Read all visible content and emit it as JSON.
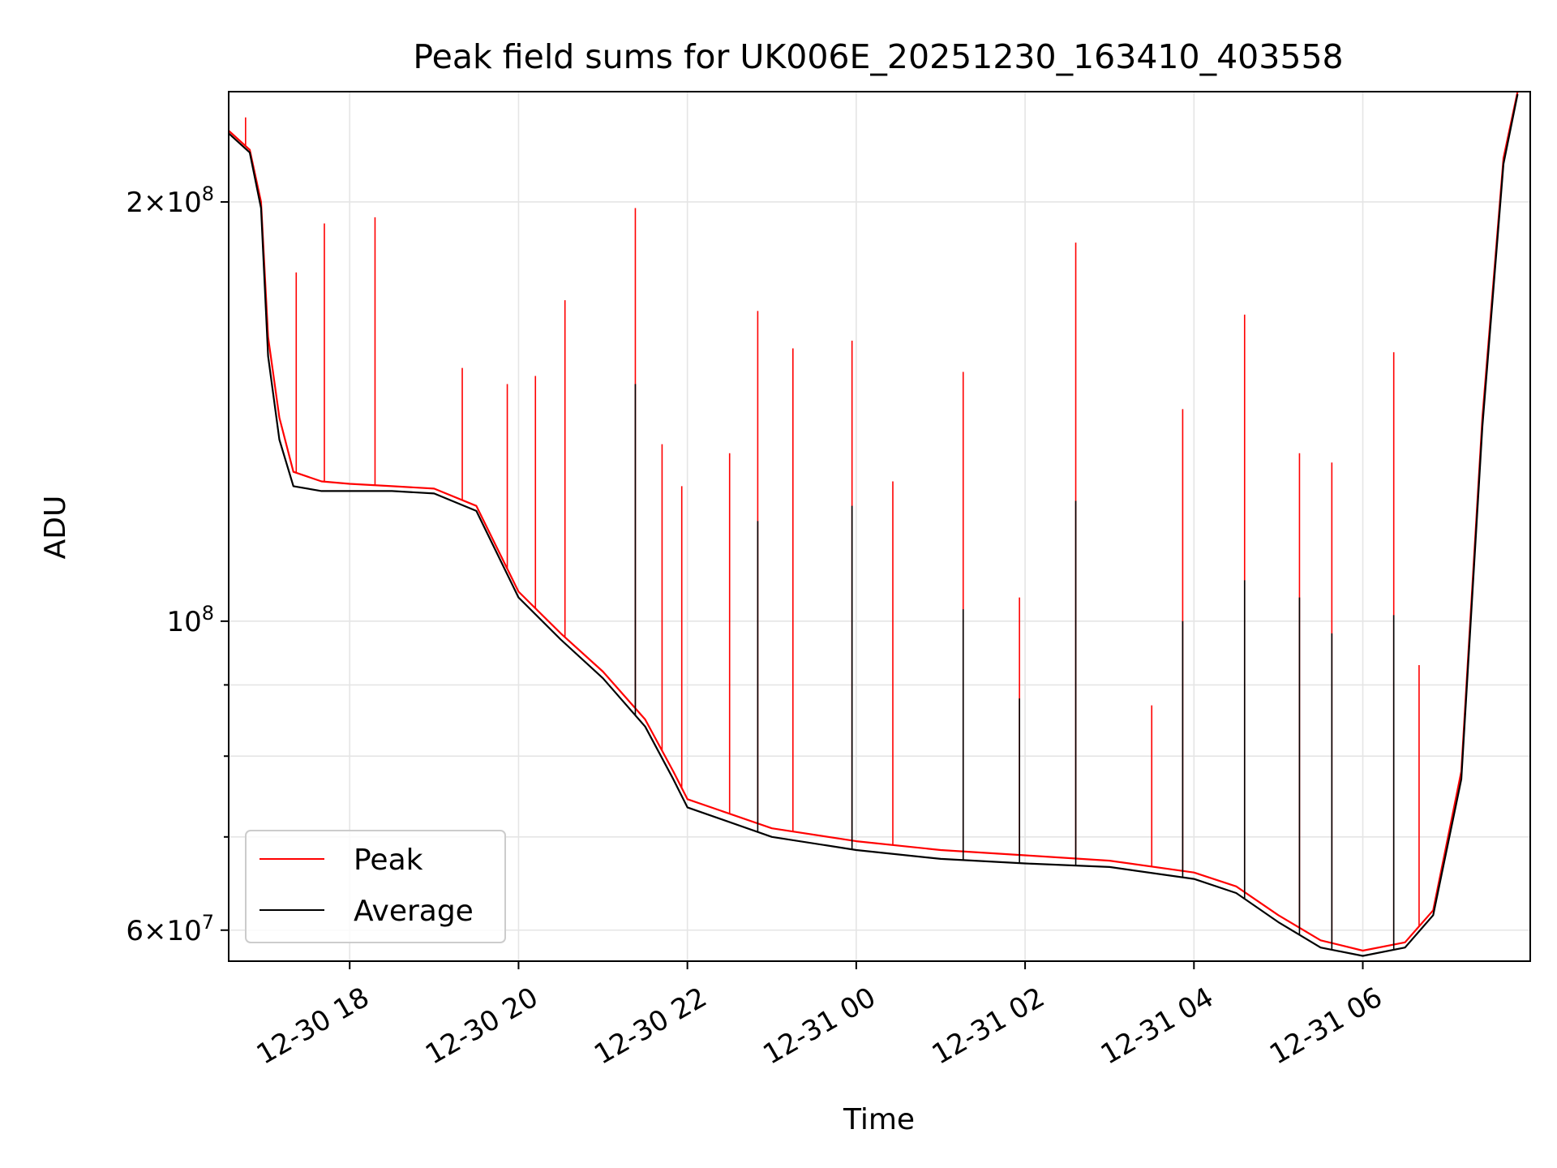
{
  "chart_data": {
    "type": "line",
    "title": "Peak field sums for UK006E_20251230_163410_403558",
    "xlabel": "Time",
    "ylabel": "ADU",
    "y_scale": "log",
    "x_range": [
      "2025-12-30 16:34",
      "2025-12-31 07:59"
    ],
    "ylim": [
      57000000,
      240000000
    ],
    "x_tick_labels": [
      "12-30 18",
      "12-30 20",
      "12-30 22",
      "12-31 00",
      "12-31 02",
      "12-31 04",
      "12-31 06"
    ],
    "x_tick_times": [
      "2025-12-30 18:00",
      "2025-12-30 20:00",
      "2025-12-30 22:00",
      "2025-12-31 00:00",
      "2025-12-31 02:00",
      "2025-12-31 04:00",
      "2025-12-31 06:00"
    ],
    "y_tick_labels": [
      {
        "value": 200000000,
        "mant": "2",
        "exp": "8"
      },
      {
        "value": 100000000,
        "mant": "",
        "exp": "8"
      },
      {
        "value": 60000000,
        "mant": "6",
        "exp": "7"
      }
    ],
    "y_minor_ticks": [
      70000000,
      80000000,
      90000000
    ],
    "grid": true,
    "legend": {
      "placement": "lower-left",
      "entries": [
        "Peak",
        "Average"
      ]
    },
    "series": [
      {
        "name": "Peak",
        "color": "#ff0000",
        "points": [
          [
            "2025-12-30 16:34",
            225000000
          ],
          [
            "2025-12-30 16:49",
            218000000
          ],
          [
            "2025-12-30 16:57",
            200000000
          ],
          [
            "2025-12-30 17:02",
            160000000
          ],
          [
            "2025-12-30 17:10",
            140000000
          ],
          [
            "2025-12-30 17:20",
            128000000
          ],
          [
            "2025-12-30 17:40",
            126000000
          ],
          [
            "2025-12-30 18:00",
            125500000
          ],
          [
            "2025-12-30 18:30",
            125000000
          ],
          [
            "2025-12-30 19:00",
            124500000
          ],
          [
            "2025-12-30 19:30",
            121000000
          ],
          [
            "2025-12-30 20:00",
            105000000
          ],
          [
            "2025-12-30 20:30",
            98000000
          ],
          [
            "2025-12-30 21:00",
            92000000
          ],
          [
            "2025-12-30 21:30",
            85000000
          ],
          [
            "2025-12-30 21:50",
            78000000
          ],
          [
            "2025-12-30 22:00",
            74500000
          ],
          [
            "2025-12-30 23:00",
            71000000
          ],
          [
            "2025-12-31 00:00",
            69500000
          ],
          [
            "2025-12-31 01:00",
            68500000
          ],
          [
            "2025-12-31 02:00",
            67900000
          ],
          [
            "2025-12-31 03:00",
            67300000
          ],
          [
            "2025-12-31 04:00",
            66000000
          ],
          [
            "2025-12-31 04:30",
            64500000
          ],
          [
            "2025-12-31 05:00",
            61500000
          ],
          [
            "2025-12-31 05:30",
            59000000
          ],
          [
            "2025-12-31 06:00",
            58000000
          ],
          [
            "2025-12-31 06:30",
            58800000
          ],
          [
            "2025-12-31 06:50",
            62000000
          ],
          [
            "2025-12-31 07:10",
            78000000
          ],
          [
            "2025-12-31 07:25",
            140000000
          ],
          [
            "2025-12-31 07:40",
            215000000
          ],
          [
            "2025-12-31 07:50",
            240000000
          ]
        ],
        "spikes": [
          [
            "2025-12-30 16:46",
            230000000
          ],
          [
            "2025-12-30 17:22",
            178000000
          ],
          [
            "2025-12-30 17:42",
            193000000
          ],
          [
            "2025-12-30 18:18",
            195000000
          ],
          [
            "2025-12-30 19:20",
            152000000
          ],
          [
            "2025-12-30 19:52",
            148000000
          ],
          [
            "2025-12-30 20:12",
            150000000
          ],
          [
            "2025-12-30 20:33",
            170000000
          ],
          [
            "2025-12-30 21:23",
            198000000
          ],
          [
            "2025-12-30 21:42",
            134000000
          ],
          [
            "2025-12-30 21:56",
            125000000
          ],
          [
            "2025-12-30 22:30",
            132000000
          ],
          [
            "2025-12-30 22:50",
            167000000
          ],
          [
            "2025-12-30 23:15",
            157000000
          ],
          [
            "2025-12-30 23:57",
            159000000
          ],
          [
            "2025-12-31 00:26",
            126000000
          ],
          [
            "2025-12-31 01:16",
            151000000
          ],
          [
            "2025-12-31 01:56",
            104000000
          ],
          [
            "2025-12-31 02:36",
            187000000
          ],
          [
            "2025-12-31 03:30",
            87000000
          ],
          [
            "2025-12-31 03:52",
            142000000
          ],
          [
            "2025-12-31 04:36",
            166000000
          ],
          [
            "2025-12-31 05:15",
            132000000
          ],
          [
            "2025-12-31 05:38",
            130000000
          ],
          [
            "2025-12-31 06:22",
            156000000
          ],
          [
            "2025-12-31 06:40",
            93000000
          ]
        ]
      },
      {
        "name": "Average",
        "color": "#000000",
        "points": [
          [
            "2025-12-30 16:34",
            224000000
          ],
          [
            "2025-12-30 16:49",
            217000000
          ],
          [
            "2025-12-30 16:57",
            198000000
          ],
          [
            "2025-12-30 17:02",
            155000000
          ],
          [
            "2025-12-30 17:10",
            135000000
          ],
          [
            "2025-12-30 17:20",
            125000000
          ],
          [
            "2025-12-30 17:40",
            124000000
          ],
          [
            "2025-12-30 18:00",
            124000000
          ],
          [
            "2025-12-30 18:30",
            124000000
          ],
          [
            "2025-12-30 19:00",
            123500000
          ],
          [
            "2025-12-30 19:30",
            120000000
          ],
          [
            "2025-12-30 20:00",
            104000000
          ],
          [
            "2025-12-30 20:30",
            97000000
          ],
          [
            "2025-12-30 21:00",
            91000000
          ],
          [
            "2025-12-30 21:30",
            84000000
          ],
          [
            "2025-12-30 21:50",
            77000000
          ],
          [
            "2025-12-30 22:00",
            73500000
          ],
          [
            "2025-12-30 23:00",
            70000000
          ],
          [
            "2025-12-31 00:00",
            68500000
          ],
          [
            "2025-12-31 01:00",
            67500000
          ],
          [
            "2025-12-31 02:00",
            67000000
          ],
          [
            "2025-12-31 03:00",
            66600000
          ],
          [
            "2025-12-31 04:00",
            65300000
          ],
          [
            "2025-12-31 04:30",
            63800000
          ],
          [
            "2025-12-31 05:00",
            60800000
          ],
          [
            "2025-12-31 05:30",
            58300000
          ],
          [
            "2025-12-31 06:00",
            57500000
          ],
          [
            "2025-12-31 06:30",
            58300000
          ],
          [
            "2025-12-31 06:50",
            61500000
          ],
          [
            "2025-12-31 07:10",
            77000000
          ],
          [
            "2025-12-31 07:25",
            138000000
          ],
          [
            "2025-12-31 07:40",
            213000000
          ],
          [
            "2025-12-31 07:50",
            239000000
          ]
        ],
        "spikes": [
          [
            "2025-12-30 21:23",
            148000000
          ],
          [
            "2025-12-30 22:50",
            118000000
          ],
          [
            "2025-12-30 23:57",
            121000000
          ],
          [
            "2025-12-31 01:16",
            102000000
          ],
          [
            "2025-12-31 01:56",
            88000000
          ],
          [
            "2025-12-31 02:36",
            122000000
          ],
          [
            "2025-12-31 03:52",
            100000000
          ],
          [
            "2025-12-31 04:36",
            107000000
          ],
          [
            "2025-12-31 05:15",
            104000000
          ],
          [
            "2025-12-31 05:38",
            98000000
          ],
          [
            "2025-12-31 06:22",
            101000000
          ]
        ]
      }
    ]
  }
}
